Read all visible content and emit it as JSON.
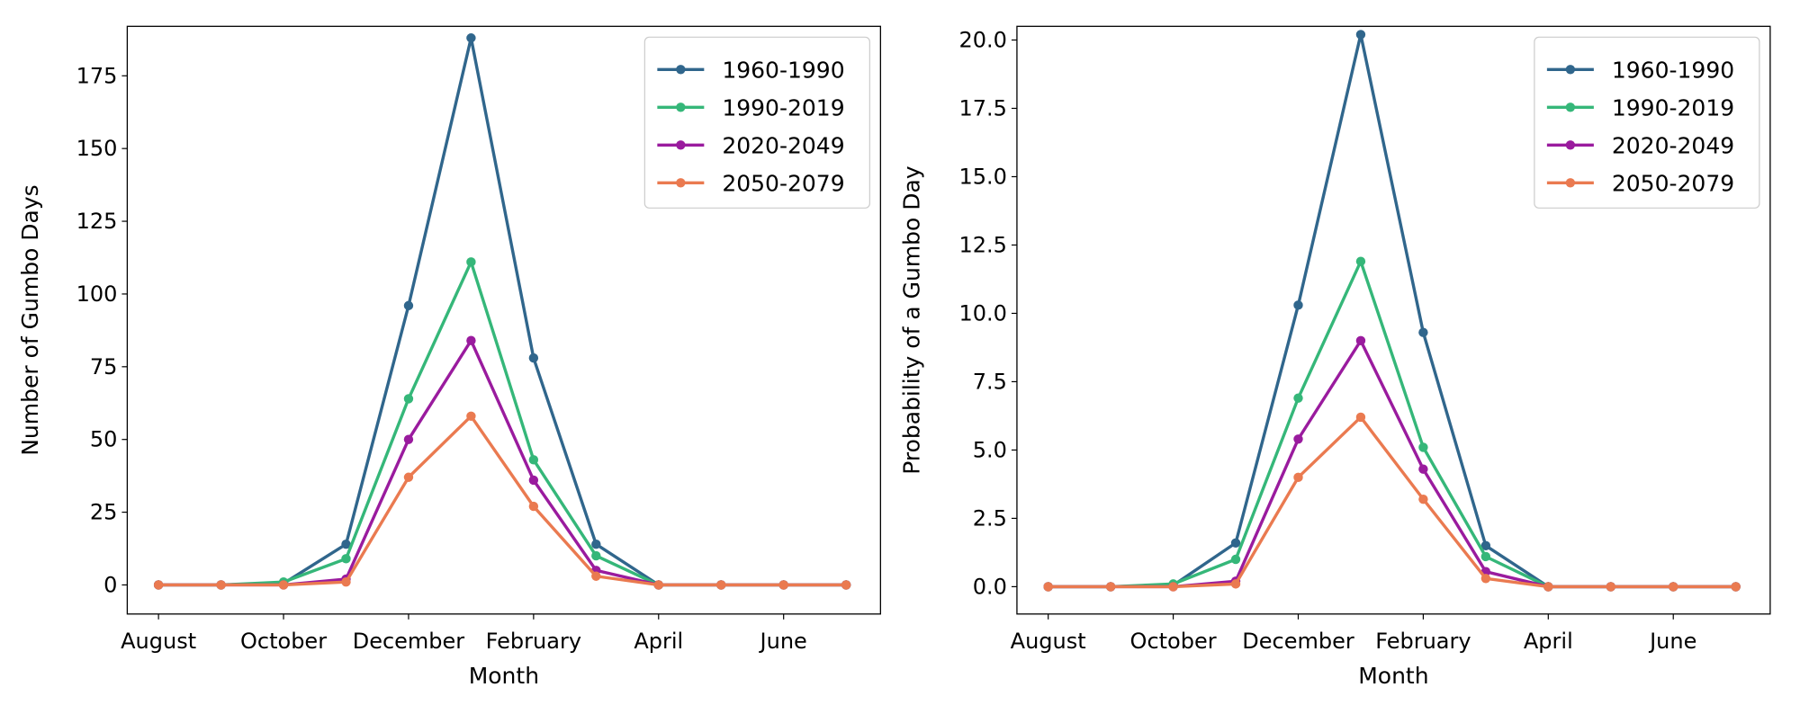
{
  "chart_data": [
    {
      "type": "line",
      "title": "",
      "xlabel": "Month",
      "ylabel": "Number of Gumbo Days",
      "x": [
        0,
        1,
        2,
        3,
        4,
        5,
        6,
        7,
        8,
        9,
        10,
        11
      ],
      "xtick_positions": [
        0,
        2,
        4,
        6,
        8,
        10
      ],
      "xtick_labels": [
        "August",
        "October",
        "December",
        "February",
        "April",
        "June"
      ],
      "xlim": [
        -0.5,
        11.55
      ],
      "ylim": [
        -10,
        192
      ],
      "ytick_values": [
        0,
        25,
        50,
        75,
        100,
        125,
        150,
        175
      ],
      "ytick_labels": [
        "0",
        "25",
        "50",
        "75",
        "100",
        "125",
        "150",
        "175"
      ],
      "grid": false,
      "legend_position": "top-right",
      "series": [
        {
          "name": "1960-1990",
          "color": "#30668c",
          "values": [
            0,
            0,
            0.5,
            14,
            96,
            188,
            78,
            14,
            0,
            0,
            0,
            0
          ]
        },
        {
          "name": "1990-2019",
          "color": "#35b779",
          "values": [
            0,
            0,
            1,
            9,
            64,
            111,
            43,
            10,
            0,
            0,
            0,
            0
          ]
        },
        {
          "name": "2020-2049",
          "color": "#9a1b9e",
          "values": [
            0,
            0,
            0,
            2,
            50,
            84,
            36,
            5,
            0,
            0,
            0,
            0
          ]
        },
        {
          "name": "2050-2079",
          "color": "#ea7a50",
          "values": [
            0,
            0,
            0,
            1,
            37,
            58,
            27,
            3,
            0,
            0,
            0,
            0
          ]
        }
      ]
    },
    {
      "type": "line",
      "title": "",
      "xlabel": "Month",
      "ylabel": "Probability of a Gumbo Day",
      "x": [
        0,
        1,
        2,
        3,
        4,
        5,
        6,
        7,
        8,
        9,
        10,
        11
      ],
      "xtick_positions": [
        0,
        2,
        4,
        6,
        8,
        10
      ],
      "xtick_labels": [
        "August",
        "October",
        "December",
        "February",
        "April",
        "June"
      ],
      "xlim": [
        -0.5,
        11.55
      ],
      "ylim": [
        -1.0,
        20.5
      ],
      "ytick_values": [
        0,
        2.5,
        5,
        7.5,
        10,
        12.5,
        15,
        17.5,
        20
      ],
      "ytick_labels": [
        "0.0",
        "2.5",
        "5.0",
        "7.5",
        "10.0",
        "12.5",
        "15.0",
        "17.5",
        "20.0"
      ],
      "grid": false,
      "legend_position": "top-right",
      "series": [
        {
          "name": "1960-1990",
          "color": "#30668c",
          "values": [
            0,
            0,
            0.05,
            1.6,
            10.3,
            20.2,
            9.3,
            1.5,
            0,
            0,
            0,
            0
          ]
        },
        {
          "name": "1990-2019",
          "color": "#35b779",
          "values": [
            0,
            0,
            0.1,
            1.0,
            6.9,
            11.9,
            5.1,
            1.1,
            0,
            0,
            0,
            0
          ]
        },
        {
          "name": "2020-2049",
          "color": "#9a1b9e",
          "values": [
            0,
            0,
            0,
            0.2,
            5.4,
            9.0,
            4.3,
            0.55,
            0,
            0,
            0,
            0
          ]
        },
        {
          "name": "2050-2079",
          "color": "#ea7a50",
          "values": [
            0,
            0,
            0,
            0.1,
            4.0,
            6.2,
            3.2,
            0.3,
            0,
            0,
            0,
            0
          ]
        }
      ]
    }
  ]
}
